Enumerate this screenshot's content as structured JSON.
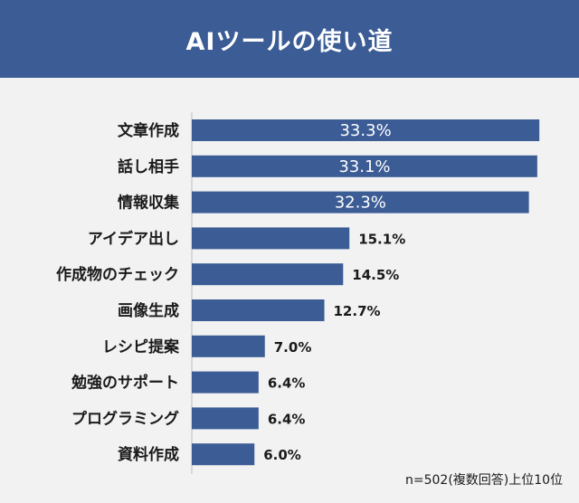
{
  "header": {
    "title": "AIツールの使い道"
  },
  "footnote": "n=502(複数回答)上位10位",
  "colors": {
    "bar": "#3b5c95",
    "header_bg": "#3b5c95",
    "background": "#f2f2f2"
  },
  "chart_data": {
    "type": "bar",
    "orientation": "horizontal",
    "title": "AIツールの使い道",
    "categories": [
      "文章作成",
      "話し相手",
      "情報収集",
      "アイデア出し",
      "作成物のチェック",
      "画像生成",
      "レシピ提案",
      "勉強のサポート",
      "プログラミング",
      "資料作成"
    ],
    "values": [
      33.3,
      33.1,
      32.3,
      15.1,
      14.5,
      12.7,
      7.0,
      6.4,
      6.4,
      6.0
    ],
    "value_labels": [
      "33.3%",
      "33.1%",
      "32.3%",
      "15.1%",
      "14.5%",
      "12.7%",
      "7.0%",
      "6.4%",
      "6.4%",
      "6.0%"
    ],
    "xlim": [
      0,
      34.5
    ],
    "grid": false,
    "legend": "none"
  }
}
